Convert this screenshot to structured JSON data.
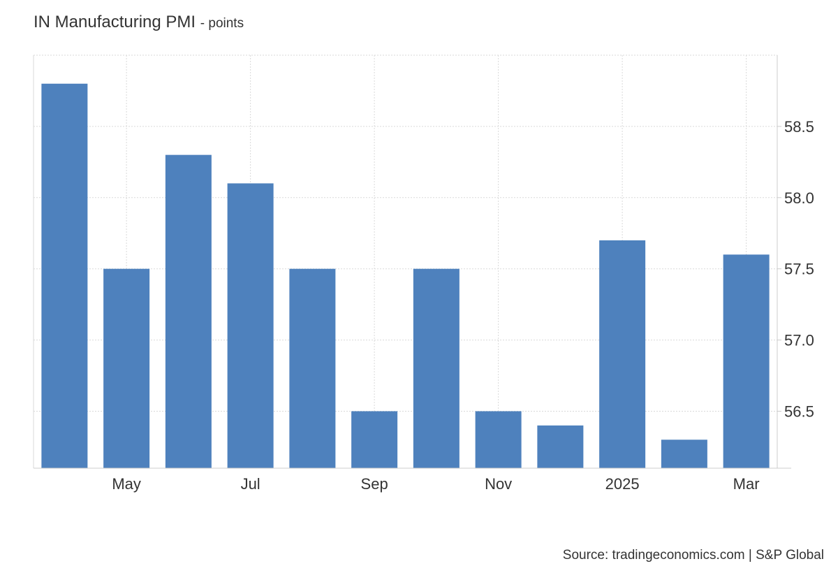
{
  "header": {
    "title": "IN Manufacturing PMI",
    "subtitle": "- points"
  },
  "source": "Source: tradingeconomics.com | S&P Global",
  "chart_data": {
    "type": "bar",
    "x": [
      "2024-04",
      "2024-05",
      "2024-06",
      "2024-07",
      "2024-08",
      "2024-09",
      "2024-10",
      "2024-11",
      "2024-12",
      "2025-01",
      "2025-02",
      "2025-03"
    ],
    "values": [
      58.8,
      57.5,
      58.3,
      58.1,
      57.5,
      56.5,
      57.5,
      56.5,
      56.4,
      57.7,
      56.3,
      57.6
    ],
    "x_tick_labels": [
      "May",
      "Jul",
      "Sep",
      "Nov",
      "2025",
      "Mar"
    ],
    "x_tick_at": [
      "2024-05",
      "2024-07",
      "2024-09",
      "2024-11",
      "2025-01",
      "2025-03"
    ],
    "y_ticks": [
      56.5,
      57.0,
      57.5,
      58.0,
      58.5
    ],
    "y_tick_labels": [
      "56.5",
      "57.0",
      "57.5",
      "58.0",
      "58.5"
    ],
    "ylim": [
      56.1,
      59.0
    ],
    "y_axis_side": "right",
    "grid": true,
    "bar_color": "#4e81bd"
  }
}
